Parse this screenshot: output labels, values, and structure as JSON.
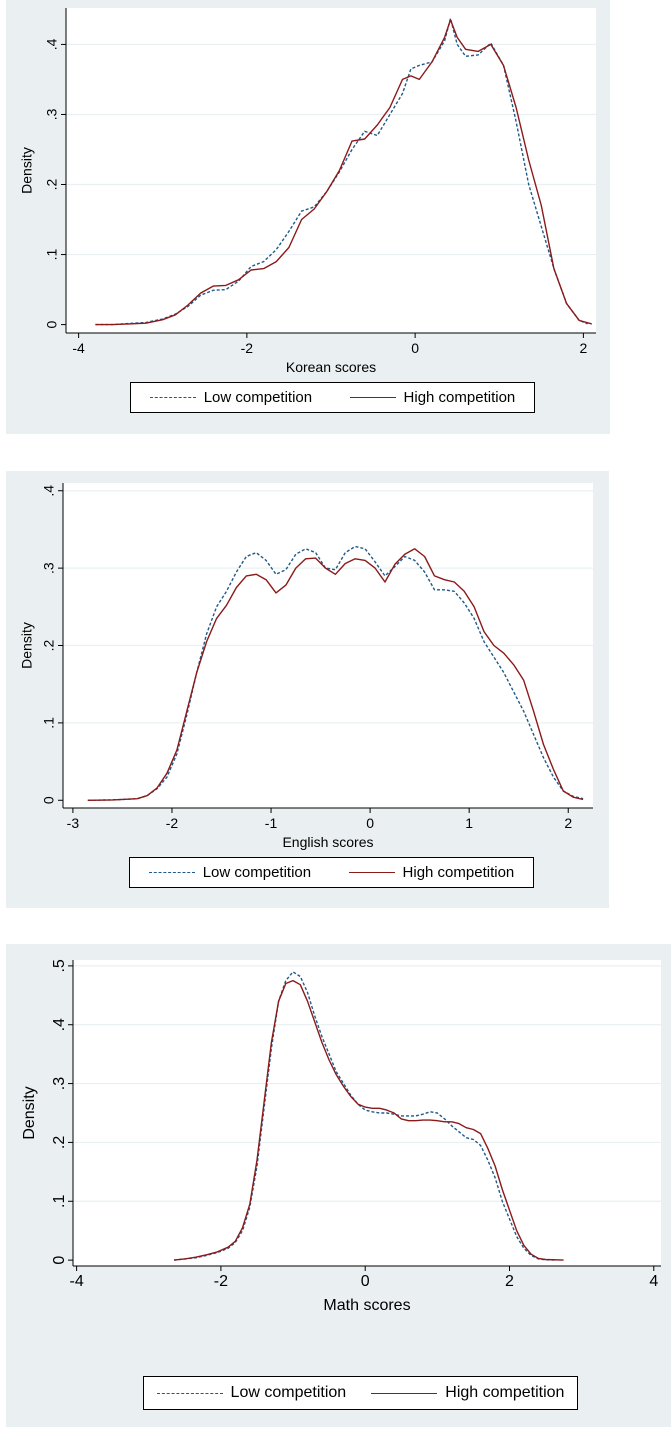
{
  "colors": {
    "panel_background": "#eaf0f2",
    "plot_background": "#ffffff",
    "gridline": "#eaf0f2",
    "low_competition": "#1f5a8a",
    "high_competition": "#8b1a1a"
  },
  "chart_data": [
    {
      "type": "line",
      "title": "",
      "xlabel": "Korean scores",
      "ylabel": "Density",
      "xlim": [
        -4.15,
        2.15
      ],
      "ylim": [
        -0.012,
        0.452
      ],
      "x_ticks": [
        -4,
        -2,
        0,
        2
      ],
      "x_tick_labels": [
        "-4",
        "-2",
        "0",
        "2"
      ],
      "y_ticks": [
        0,
        0.1,
        0.2,
        0.3,
        0.4
      ],
      "y_tick_labels": [
        "0",
        ".1",
        ".2",
        ".3",
        ".4"
      ],
      "grid": true,
      "legend": {
        "position": "bottom",
        "entries": [
          "Low competition",
          "High competition"
        ]
      },
      "series": [
        {
          "name": "Low competition",
          "style": "dashed",
          "x": [
            -3.8,
            -3.6,
            -3.4,
            -3.2,
            -3.0,
            -2.85,
            -2.7,
            -2.55,
            -2.4,
            -2.25,
            -2.1,
            -1.95,
            -1.8,
            -1.65,
            -1.5,
            -1.35,
            -1.2,
            -1.05,
            -0.9,
            -0.75,
            -0.6,
            -0.45,
            -0.3,
            -0.15,
            -0.05,
            0.05,
            0.2,
            0.35,
            0.42,
            0.5,
            0.6,
            0.75,
            0.9,
            1.05,
            1.2,
            1.35,
            1.5,
            1.65,
            1.8,
            1.95,
            2.05
          ],
          "y": [
            0.0,
            0.0,
            0.0015,
            0.003,
            0.008,
            0.015,
            0.026,
            0.042,
            0.049,
            0.05,
            0.062,
            0.083,
            0.09,
            0.107,
            0.133,
            0.162,
            0.168,
            0.19,
            0.218,
            0.25,
            0.276,
            0.27,
            0.3,
            0.33,
            0.365,
            0.37,
            0.375,
            0.405,
            0.437,
            0.4,
            0.383,
            0.385,
            0.402,
            0.37,
            0.29,
            0.2,
            0.14,
            0.08,
            0.03,
            0.006,
            0.001
          ]
        },
        {
          "name": "High competition",
          "style": "solid",
          "x": [
            -3.8,
            -3.6,
            -3.4,
            -3.2,
            -3.0,
            -2.85,
            -2.7,
            -2.55,
            -2.4,
            -2.25,
            -2.1,
            -1.95,
            -1.8,
            -1.65,
            -1.5,
            -1.35,
            -1.2,
            -1.05,
            -0.9,
            -0.75,
            -0.6,
            -0.45,
            -0.3,
            -0.15,
            -0.05,
            0.05,
            0.2,
            0.35,
            0.42,
            0.5,
            0.6,
            0.75,
            0.9,
            1.05,
            1.2,
            1.35,
            1.5,
            1.65,
            1.8,
            1.95,
            2.1
          ],
          "y": [
            0.0,
            0.0,
            0.001,
            0.002,
            0.007,
            0.014,
            0.028,
            0.045,
            0.055,
            0.056,
            0.064,
            0.078,
            0.08,
            0.09,
            0.11,
            0.15,
            0.165,
            0.19,
            0.22,
            0.262,
            0.265,
            0.285,
            0.31,
            0.35,
            0.355,
            0.35,
            0.375,
            0.41,
            0.435,
            0.41,
            0.393,
            0.39,
            0.4,
            0.37,
            0.31,
            0.235,
            0.17,
            0.08,
            0.03,
            0.006,
            0.001
          ]
        }
      ]
    },
    {
      "type": "line",
      "title": "",
      "xlabel": "English scores",
      "ylabel": "Density",
      "xlim": [
        -3.1,
        2.25
      ],
      "ylim": [
        -0.01,
        0.41
      ],
      "x_ticks": [
        -3,
        -2,
        -1,
        0,
        1,
        2
      ],
      "x_tick_labels": [
        "-3",
        "-2",
        "-1",
        "0",
        "1",
        "2"
      ],
      "y_ticks": [
        0,
        0.1,
        0.2,
        0.3,
        0.4
      ],
      "y_tick_labels": [
        "0",
        ".1",
        ".2",
        ".3",
        ".4"
      ],
      "grid": true,
      "legend": {
        "position": "bottom",
        "entries": [
          "Low competition",
          "High competition"
        ]
      },
      "series": [
        {
          "name": "Low competition",
          "style": "dashed",
          "x": [
            -2.85,
            -2.6,
            -2.35,
            -2.25,
            -2.15,
            -2.05,
            -1.95,
            -1.85,
            -1.75,
            -1.65,
            -1.55,
            -1.45,
            -1.35,
            -1.25,
            -1.15,
            -1.05,
            -0.95,
            -0.85,
            -0.75,
            -0.65,
            -0.55,
            -0.45,
            -0.35,
            -0.25,
            -0.15,
            -0.05,
            0.05,
            0.15,
            0.25,
            0.35,
            0.45,
            0.55,
            0.65,
            0.75,
            0.85,
            0.95,
            1.05,
            1.15,
            1.25,
            1.35,
            1.45,
            1.55,
            1.65,
            1.75,
            1.85,
            1.95,
            2.05,
            2.15
          ],
          "y": [
            0.0,
            0.0005,
            0.002,
            0.006,
            0.015,
            0.03,
            0.06,
            0.11,
            0.165,
            0.215,
            0.25,
            0.27,
            0.295,
            0.315,
            0.32,
            0.31,
            0.292,
            0.298,
            0.318,
            0.325,
            0.32,
            0.3,
            0.298,
            0.32,
            0.328,
            0.325,
            0.308,
            0.29,
            0.302,
            0.315,
            0.31,
            0.295,
            0.272,
            0.272,
            0.27,
            0.255,
            0.235,
            0.205,
            0.185,
            0.165,
            0.14,
            0.115,
            0.085,
            0.055,
            0.03,
            0.012,
            0.005,
            0.002
          ]
        },
        {
          "name": "High competition",
          "style": "solid",
          "x": [
            -2.85,
            -2.6,
            -2.35,
            -2.25,
            -2.15,
            -2.05,
            -1.95,
            -1.85,
            -1.75,
            -1.65,
            -1.55,
            -1.45,
            -1.35,
            -1.25,
            -1.15,
            -1.05,
            -0.95,
            -0.85,
            -0.75,
            -0.65,
            -0.55,
            -0.45,
            -0.35,
            -0.25,
            -0.15,
            -0.05,
            0.05,
            0.15,
            0.25,
            0.35,
            0.45,
            0.55,
            0.65,
            0.75,
            0.85,
            0.95,
            1.05,
            1.15,
            1.25,
            1.35,
            1.45,
            1.55,
            1.65,
            1.75,
            1.85,
            1.95,
            2.05,
            2.15
          ],
          "y": [
            0.0,
            0.0005,
            0.002,
            0.006,
            0.016,
            0.035,
            0.065,
            0.115,
            0.165,
            0.205,
            0.235,
            0.252,
            0.275,
            0.29,
            0.292,
            0.285,
            0.268,
            0.278,
            0.3,
            0.312,
            0.313,
            0.3,
            0.292,
            0.306,
            0.312,
            0.31,
            0.3,
            0.282,
            0.305,
            0.318,
            0.325,
            0.315,
            0.29,
            0.285,
            0.282,
            0.27,
            0.25,
            0.218,
            0.2,
            0.19,
            0.175,
            0.155,
            0.115,
            0.072,
            0.04,
            0.012,
            0.004,
            0.001
          ]
        }
      ]
    },
    {
      "type": "line",
      "title": "",
      "xlabel": "Math scores",
      "ylabel": "Density",
      "xlim": [
        -4.05,
        4.1
      ],
      "ylim": [
        -0.01,
        0.51
      ],
      "x_ticks": [
        -4,
        -2,
        0,
        2,
        4
      ],
      "x_tick_labels": [
        "-4",
        "-2",
        "0",
        "2",
        "4"
      ],
      "y_ticks": [
        0,
        0.1,
        0.2,
        0.3,
        0.4,
        0.5
      ],
      "y_tick_labels": [
        "0",
        ".1",
        ".2",
        ".3",
        ".4",
        ".5"
      ],
      "grid": true,
      "legend": {
        "position": "bottom",
        "entries": [
          "Low competition",
          "High competition"
        ]
      },
      "series": [
        {
          "name": "Low competition",
          "style": "dashed",
          "x": [
            -2.65,
            -2.5,
            -2.35,
            -2.2,
            -2.05,
            -1.9,
            -1.8,
            -1.7,
            -1.6,
            -1.5,
            -1.4,
            -1.3,
            -1.2,
            -1.1,
            -1.0,
            -0.9,
            -0.8,
            -0.7,
            -0.6,
            -0.5,
            -0.4,
            -0.3,
            -0.2,
            -0.1,
            0.0,
            0.1,
            0.2,
            0.3,
            0.4,
            0.5,
            0.6,
            0.7,
            0.8,
            0.9,
            1.0,
            1.1,
            1.2,
            1.3,
            1.4,
            1.5,
            1.6,
            1.7,
            1.8,
            1.9,
            2.0,
            2.1,
            2.2,
            2.3,
            2.4,
            2.5,
            2.65
          ],
          "y": [
            0.0,
            0.002,
            0.004,
            0.008,
            0.013,
            0.02,
            0.03,
            0.05,
            0.09,
            0.16,
            0.26,
            0.36,
            0.44,
            0.475,
            0.49,
            0.482,
            0.455,
            0.415,
            0.38,
            0.35,
            0.32,
            0.3,
            0.28,
            0.265,
            0.255,
            0.252,
            0.25,
            0.25,
            0.248,
            0.245,
            0.245,
            0.245,
            0.248,
            0.252,
            0.25,
            0.24,
            0.228,
            0.218,
            0.208,
            0.205,
            0.195,
            0.17,
            0.14,
            0.1,
            0.07,
            0.04,
            0.02,
            0.008,
            0.002,
            0.0005,
            0.0
          ]
        },
        {
          "name": "High competition",
          "style": "solid",
          "x": [
            -2.65,
            -2.5,
            -2.35,
            -2.2,
            -2.05,
            -1.9,
            -1.8,
            -1.7,
            -1.6,
            -1.5,
            -1.4,
            -1.3,
            -1.2,
            -1.1,
            -1.0,
            -0.9,
            -0.8,
            -0.7,
            -0.6,
            -0.5,
            -0.4,
            -0.3,
            -0.2,
            -0.1,
            0.0,
            0.1,
            0.2,
            0.3,
            0.4,
            0.5,
            0.6,
            0.7,
            0.8,
            0.9,
            1.0,
            1.1,
            1.2,
            1.3,
            1.4,
            1.5,
            1.6,
            1.7,
            1.8,
            1.9,
            2.0,
            2.1,
            2.2,
            2.3,
            2.4,
            2.5,
            2.75
          ],
          "y": [
            0.0,
            0.002,
            0.005,
            0.009,
            0.014,
            0.022,
            0.032,
            0.055,
            0.095,
            0.17,
            0.27,
            0.37,
            0.44,
            0.47,
            0.475,
            0.468,
            0.44,
            0.405,
            0.37,
            0.34,
            0.315,
            0.295,
            0.278,
            0.265,
            0.26,
            0.258,
            0.258,
            0.255,
            0.25,
            0.24,
            0.237,
            0.237,
            0.238,
            0.238,
            0.237,
            0.235,
            0.235,
            0.232,
            0.225,
            0.222,
            0.215,
            0.19,
            0.16,
            0.12,
            0.085,
            0.05,
            0.025,
            0.01,
            0.003,
            0.001,
            0.0
          ]
        }
      ]
    }
  ]
}
